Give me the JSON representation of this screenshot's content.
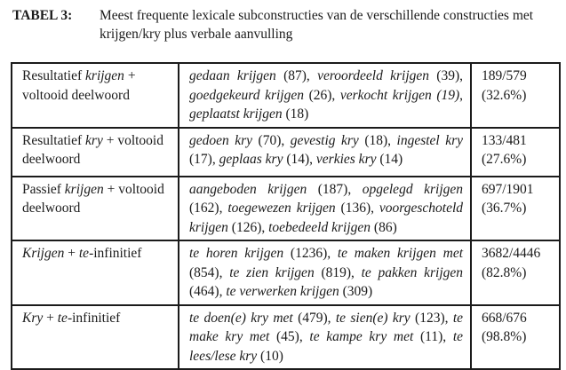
{
  "caption": {
    "label": "TABEL 3:",
    "text": "Meest frequente lexicale subconstructies van de verschillende constructies met krijgen/kry plus verbale aanvulling"
  },
  "table": {
    "rows": [
      {
        "construction": [
          {
            "text": "Resultatief ",
            "italic": false
          },
          {
            "text": "krijgen",
            "italic": true
          },
          {
            "text": " + voltooid deelwoord",
            "italic": false
          }
        ],
        "examples": [
          {
            "phrase": "gedaan krijgen",
            "count": "(87)",
            "count_italic": false
          },
          {
            "phrase": "veroordeeld krijgen",
            "count": "(39)",
            "count_italic": false
          },
          {
            "phrase": "goedgekeurd krijgen",
            "count": "(26)",
            "count_italic": false
          },
          {
            "phrase": "verkocht krijgen",
            "count": "(19)",
            "count_italic": true
          },
          {
            "phrase": "geplaatst krijgen",
            "count": "(18)",
            "count_italic": false
          }
        ],
        "frequency": {
          "ratio": "189/579",
          "percent": "(32.6%)"
        }
      },
      {
        "construction": [
          {
            "text": "Resultatief ",
            "italic": false
          },
          {
            "text": "kry",
            "italic": true
          },
          {
            "text": " + voltooid deelwoord",
            "italic": false
          }
        ],
        "examples": [
          {
            "phrase": "gedoen kry",
            "count": "(70)",
            "count_italic": false
          },
          {
            "phrase": "gevestig kry",
            "count": "(18)",
            "count_italic": false
          },
          {
            "phrase": "ingestel kry",
            "count": "(17)",
            "count_italic": false
          },
          {
            "phrase": "geplaas kry",
            "count": "(14)",
            "count_italic": false
          },
          {
            "phrase": "verkies kry",
            "count": "(14)",
            "count_italic": false
          }
        ],
        "frequency": {
          "ratio": "133/481",
          "percent": "(27.6%)"
        }
      },
      {
        "construction": [
          {
            "text": "Passief ",
            "italic": false
          },
          {
            "text": "krijgen",
            "italic": true
          },
          {
            "text": " + voltooid deelwoord",
            "italic": false
          }
        ],
        "examples": [
          {
            "phrase": "aangeboden krijgen",
            "count": "(187)",
            "count_italic": false
          },
          {
            "phrase": "opgelegd krijgen",
            "count": "(162)",
            "count_italic": false
          },
          {
            "phrase": "toegewezen krijgen",
            "count": "(136)",
            "count_italic": false
          },
          {
            "phrase": "voorgeschoteld krijgen",
            "count": "(126)",
            "count_italic": false
          },
          {
            "phrase": "toebedeeld krijgen",
            "count": "(86)",
            "count_italic": false
          }
        ],
        "frequency": {
          "ratio": "697/1901",
          "percent": "(36.7%)"
        }
      },
      {
        "construction": [
          {
            "text": "Krijgen",
            "italic": true
          },
          {
            "text": " + ",
            "italic": false
          },
          {
            "text": "te",
            "italic": true
          },
          {
            "text": "-infinitief",
            "italic": false
          }
        ],
        "examples": [
          {
            "phrase": "te horen krijgen",
            "count": "(1236)",
            "count_italic": false
          },
          {
            "phrase": "te maken krijgen met",
            "count": "(854)",
            "count_italic": false
          },
          {
            "phrase": "te zien krijgen",
            "count": "(819)",
            "count_italic": false
          },
          {
            "phrase": "te pakken krijgen",
            "count": "(464)",
            "count_italic": false
          },
          {
            "phrase": "te verwerken krijgen",
            "count": "(309)",
            "count_italic": false
          }
        ],
        "frequency": {
          "ratio": "3682/4446",
          "percent": "(82.8%)"
        }
      },
      {
        "construction": [
          {
            "text": "Kry",
            "italic": true
          },
          {
            "text": " + ",
            "italic": false
          },
          {
            "text": "te",
            "italic": true
          },
          {
            "text": "-infinitief",
            "italic": false
          }
        ],
        "examples": [
          {
            "phrase": "te doen(e) kry met",
            "count": "(479)",
            "count_italic": false
          },
          {
            "phrase": "te sien(e) kry",
            "count": "(123)",
            "count_italic": false
          },
          {
            "phrase": "te make kry met",
            "count": "(45)",
            "count_italic": false
          },
          {
            "phrase": "te kampe kry met",
            "count": "(11)",
            "count_italic": false
          },
          {
            "phrase": "te lees/lese kry",
            "count": "(10)",
            "count_italic": false
          }
        ],
        "frequency": {
          "ratio": "668/676",
          "percent": "(98.8%)"
        }
      }
    ]
  }
}
